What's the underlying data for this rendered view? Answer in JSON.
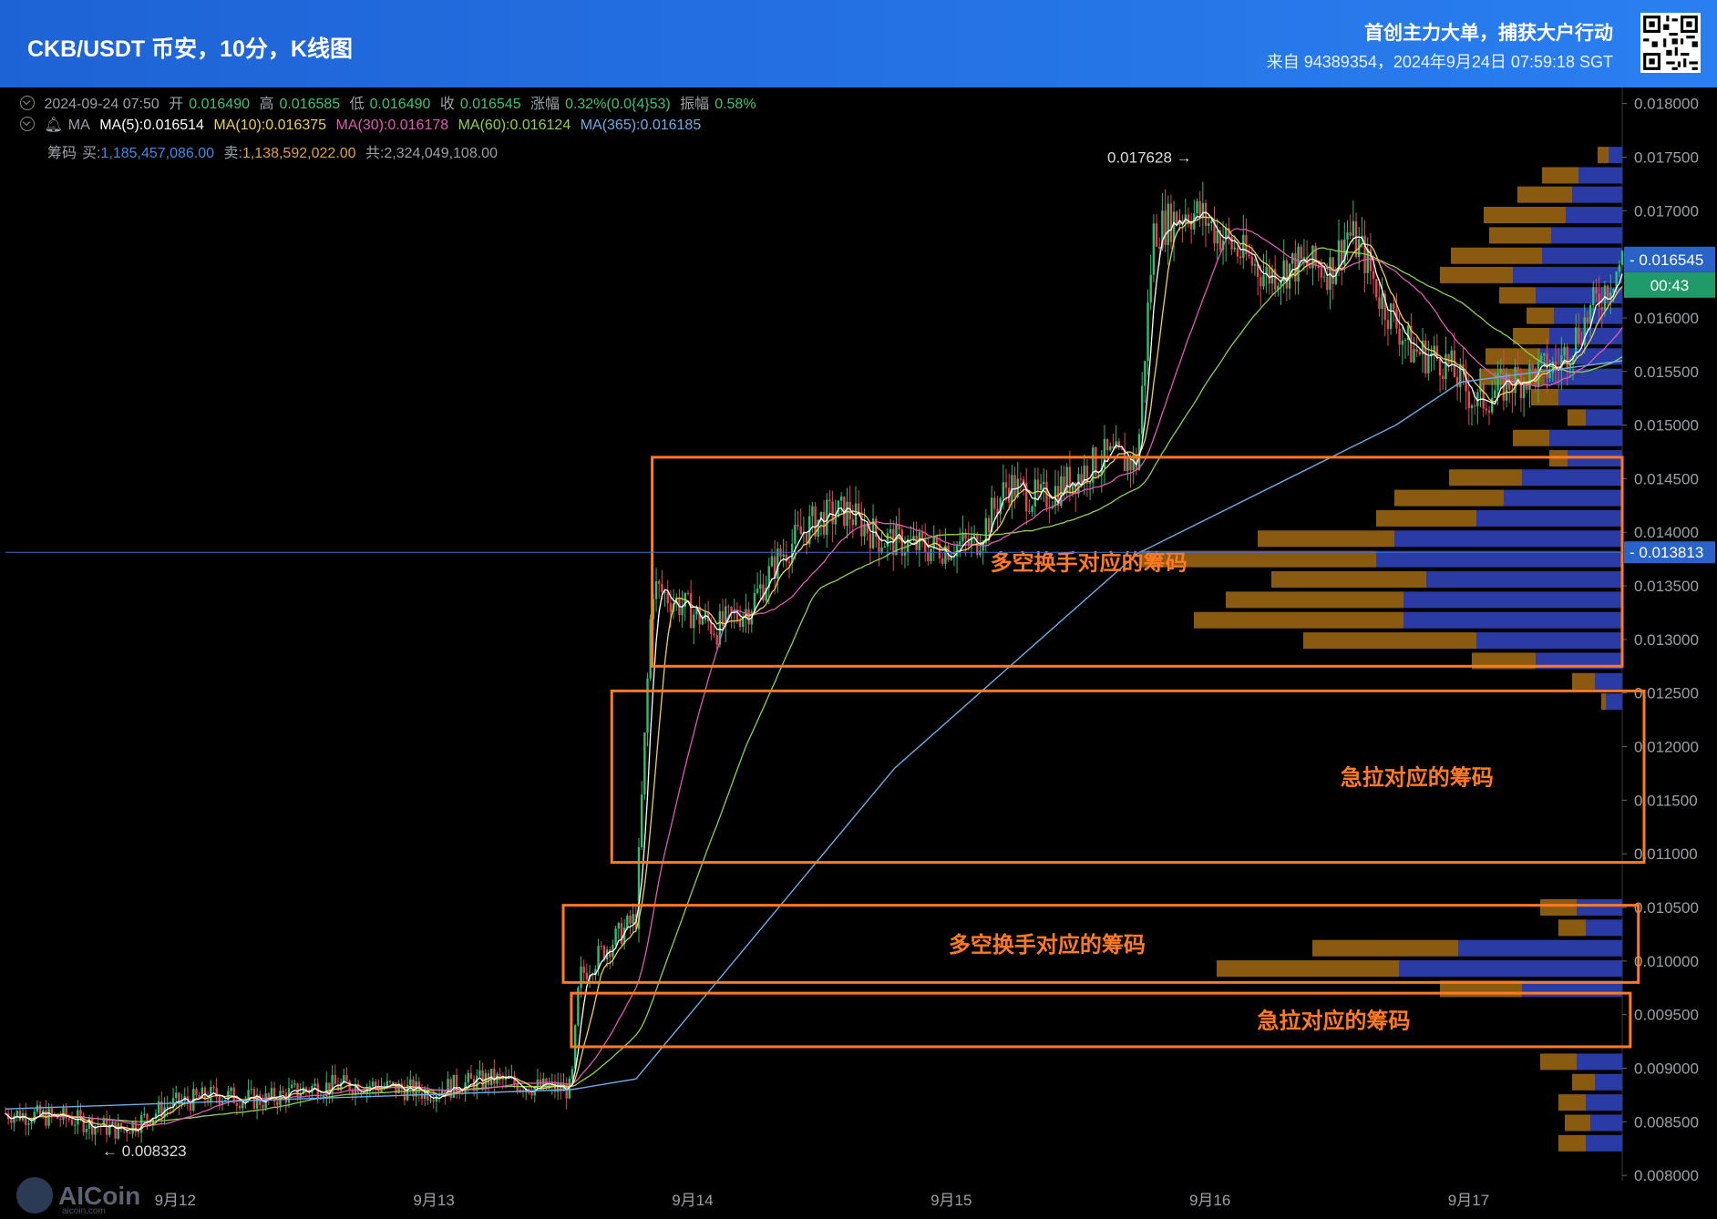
{
  "header": {
    "title": "CKB/USDT 币安，10分，K线图",
    "slogan": "首创主力大单，捕获大户行动",
    "source": "来自 94389354，2024年9月24日 07:59:18 SGT"
  },
  "info_bar": {
    "line1": {
      "datetime": "2024-09-24 07:50",
      "open_label": "开",
      "open": "0.016490",
      "high_label": "高",
      "high": "0.016585",
      "low_label": "低",
      "low": "0.016490",
      "close_label": "收",
      "close": "0.016545",
      "change_label": "涨幅",
      "change": "0.32%(0.0{4}53)",
      "amp_label": "振幅",
      "amp": "0.58%"
    },
    "line2": {
      "prefix": "MA",
      "ma5": "MA(5):0.016514",
      "ma10": "MA(10):0.016375",
      "ma30": "MA(30):0.016178",
      "ma60": "MA(60):0.016124",
      "ma365": "MA(365):0.016185"
    },
    "line3": {
      "label": "筹码",
      "buy_label": "买:",
      "buy": "1,185,457,086.00",
      "sell_label": "卖:",
      "sell": "1,138,592,022.00",
      "total_label": "共:",
      "total": "2,324,049,108.00"
    }
  },
  "colors": {
    "ma5": "#ffffff",
    "ma10": "#f2d04a",
    "ma30": "#e05ab4",
    "ma60": "#8ed24a",
    "ma365": "#6aaeea",
    "up": "#2dbd73",
    "down": "#e2464e",
    "box": "#ff7a21",
    "chip_buy": "#2a3ba6",
    "chip_sell": "#8a5a10",
    "price_tag": "#2a63c8",
    "timer_tag": "#1f9a68"
  },
  "chart_data": {
    "type": "candlestick",
    "pair": "CKB/USDT",
    "exchange": "币安",
    "interval": "10分",
    "y_range": [
      0.00795,
      0.01815
    ],
    "y_ticks": [
      "0.018000",
      "0.017500",
      "0.017000",
      "0.016500",
      "0.016000",
      "0.015500",
      "0.015000",
      "0.014500",
      "0.014000",
      "0.013500",
      "0.013000",
      "0.012500",
      "0.012000",
      "0.011500",
      "0.011000",
      "0.010500",
      "0.010000",
      "0.009500",
      "0.009000",
      "0.008500",
      "0.008000"
    ],
    "x_ticks": [
      "9月12",
      "9月13",
      "9月14",
      "9月15",
      "9月16",
      "9月17"
    ],
    "current_price": "0.016545",
    "countdown": "00:43",
    "crosshair_price": "0.013813",
    "marker_high": "0.017628 →",
    "marker_low": "← 0.008323",
    "price_path": [
      [
        0,
        0.00858
      ],
      [
        0.04,
        0.00853
      ],
      [
        0.07,
        0.00842
      ],
      [
        0.08,
        0.00848
      ],
      [
        0.1,
        0.00865
      ],
      [
        0.13,
        0.00875
      ],
      [
        0.16,
        0.0087
      ],
      [
        0.19,
        0.00882
      ],
      [
        0.22,
        0.00885
      ],
      [
        0.26,
        0.00878
      ],
      [
        0.3,
        0.0089
      ],
      [
        0.33,
        0.00882
      ],
      [
        0.35,
        0.0088
      ],
      [
        0.355,
        0.00985
      ],
      [
        0.37,
        0.0101
      ],
      [
        0.39,
        0.0104
      ],
      [
        0.4,
        0.0135
      ],
      [
        0.41,
        0.0134
      ],
      [
        0.42,
        0.0133
      ],
      [
        0.44,
        0.0131
      ],
      [
        0.46,
        0.0133
      ],
      [
        0.48,
        0.0138
      ],
      [
        0.5,
        0.0141
      ],
      [
        0.52,
        0.0142
      ],
      [
        0.54,
        0.01395
      ],
      [
        0.57,
        0.01385
      ],
      [
        0.6,
        0.0139
      ],
      [
        0.62,
        0.01445
      ],
      [
        0.64,
        0.0143
      ],
      [
        0.66,
        0.0145
      ],
      [
        0.68,
        0.0147
      ],
      [
        0.7,
        0.01465
      ],
      [
        0.71,
        0.0168
      ],
      [
        0.72,
        0.0169
      ],
      [
        0.73,
        0.017
      ],
      [
        0.74,
        0.01695
      ],
      [
        0.76,
        0.01665
      ],
      [
        0.78,
        0.0164
      ],
      [
        0.8,
        0.0165
      ],
      [
        0.82,
        0.01645
      ],
      [
        0.83,
        0.0168
      ],
      [
        0.84,
        0.0166
      ],
      [
        0.85,
        0.0162
      ],
      [
        0.87,
        0.0157
      ],
      [
        0.89,
        0.0156
      ],
      [
        0.91,
        0.0152
      ],
      [
        0.93,
        0.0154
      ],
      [
        0.96,
        0.01555
      ],
      [
        1.0,
        0.01654
      ]
    ],
    "ma365_path": [
      [
        0,
        0.00862
      ],
      [
        0.35,
        0.0088
      ],
      [
        0.39,
        0.0089
      ],
      [
        0.55,
        0.0118
      ],
      [
        0.7,
        0.0138
      ],
      [
        0.82,
        0.0147
      ],
      [
        0.86,
        0.015
      ],
      [
        0.9,
        0.0154
      ],
      [
        1.0,
        0.0156
      ]
    ],
    "volume_profile": [
      {
        "price": 0.01752,
        "buy": 15,
        "sell": 12
      },
      {
        "price": 0.01733,
        "buy": 48,
        "sell": 40
      },
      {
        "price": 0.01715,
        "buy": 55,
        "sell": 60
      },
      {
        "price": 0.01696,
        "buy": 62,
        "sell": 90
      },
      {
        "price": 0.01677,
        "buy": 78,
        "sell": 68
      },
      {
        "price": 0.01658,
        "buy": 88,
        "sell": 100
      },
      {
        "price": 0.0164,
        "buy": 120,
        "sell": 80
      },
      {
        "price": 0.01621,
        "buy": 95,
        "sell": 40
      },
      {
        "price": 0.01602,
        "buy": 75,
        "sell": 30
      },
      {
        "price": 0.01583,
        "buy": 80,
        "sell": 40
      },
      {
        "price": 0.01564,
        "buy": 90,
        "sell": 60
      },
      {
        "price": 0.01545,
        "buy": 85,
        "sell": 72
      },
      {
        "price": 0.01526,
        "buy": 70,
        "sell": 30
      },
      {
        "price": 0.01507,
        "buy": 40,
        "sell": 20
      },
      {
        "price": 0.01488,
        "buy": 80,
        "sell": 40
      },
      {
        "price": 0.01469,
        "buy": 60,
        "sell": 20
      },
      {
        "price": 0.01451,
        "buy": 110,
        "sell": 80
      },
      {
        "price": 0.01432,
        "buy": 130,
        "sell": 120
      },
      {
        "price": 0.01413,
        "buy": 160,
        "sell": 110
      },
      {
        "price": 0.01394,
        "buy": 250,
        "sell": 150
      },
      {
        "price": 0.01375,
        "buy": 270,
        "sell": 260
      },
      {
        "price": 0.01356,
        "buy": 215,
        "sell": 170
      },
      {
        "price": 0.01337,
        "buy": 240,
        "sell": 195
      },
      {
        "price": 0.01318,
        "buy": 240,
        "sell": 230
      },
      {
        "price": 0.01299,
        "buy": 160,
        "sell": 190
      },
      {
        "price": 0.0128,
        "buy": 95,
        "sell": 70
      },
      {
        "price": 0.01261,
        "buy": 30,
        "sell": 25
      },
      {
        "price": 0.01242,
        "buy": 18,
        "sell": 5
      },
      {
        "price": 0.0105,
        "buy": 50,
        "sell": 40
      },
      {
        "price": 0.01031,
        "buy": 40,
        "sell": 30
      },
      {
        "price": 0.01012,
        "buy": 180,
        "sell": 160
      },
      {
        "price": 0.00993,
        "buy": 245,
        "sell": 200
      },
      {
        "price": 0.00974,
        "buy": 110,
        "sell": 90
      },
      {
        "price": 0.00906,
        "buy": 50,
        "sell": 40
      },
      {
        "price": 0.00887,
        "buy": 30,
        "sell": 25
      },
      {
        "price": 0.00868,
        "buy": 40,
        "sell": 30
      },
      {
        "price": 0.00849,
        "buy": 35,
        "sell": 28
      },
      {
        "price": 0.0083,
        "buy": 40,
        "sell": 30
      }
    ],
    "annotations": [
      {
        "label": "多空换手对应的筹码",
        "price_top": 0.0147,
        "price_bottom": 0.01275,
        "x_start": 0.4,
        "x_end": 1.0
      },
      {
        "label": "急拉对应的筹码",
        "price_top": 0.01252,
        "price_bottom": 0.01092,
        "x_start": 0.375,
        "x_end": 1.02
      },
      {
        "label": "多空换手对应的筹码",
        "price_top": 0.01052,
        "price_bottom": 0.0098,
        "x_start": 0.345,
        "x_end": 1.01
      },
      {
        "label": "急拉对应的筹码",
        "price_top": 0.0097,
        "price_bottom": 0.0092,
        "x_start": 0.35,
        "x_end": 1.005
      }
    ]
  }
}
